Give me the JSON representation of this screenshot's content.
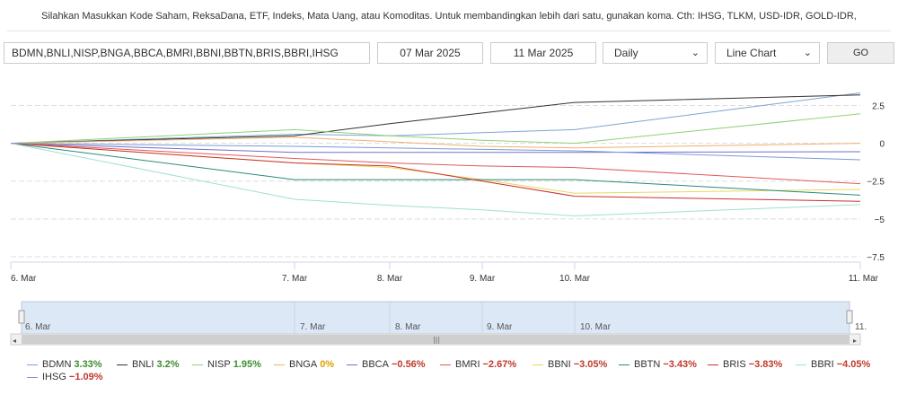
{
  "instructions": "Silahkan Masukkan Kode Saham, ReksaDana, ETF, Indeks, Mata Uang, atau Komoditas. Untuk membandingkan lebih dari satu, gunakan koma. Cth: IHSG, TLKM, USD-IDR, GOLD-IDR,",
  "controls": {
    "codes": "BDMN,BNLI,NISP,BNGA,BBCA,BMRI,BBNI,BBTN,BRIS,BBRI,IHSG",
    "start_date": "07 Mar 2025",
    "end_date": "11 Mar 2025",
    "interval": "Daily",
    "chart_type": "Line Chart",
    "go_label": "GO"
  },
  "chart_data": {
    "type": "line",
    "x": [
      "6. Mar",
      "7. Mar",
      "8. Mar",
      "9. Mar",
      "10. Mar",
      "11. Mar"
    ],
    "yticks": [
      2.5,
      0,
      -2.5,
      -5,
      -7.5
    ],
    "ytick_labels": [
      "2.5",
      "0",
      "−2.5",
      "−5",
      "−7.5"
    ],
    "ylim": [
      -7.5,
      3.3
    ],
    "navigator_labels": [
      "6. Mar",
      "7. Mar",
      "8. Mar",
      "9. Mar",
      "10. Mar",
      "11."
    ],
    "navigator_handle": "|||",
    "series": [
      {
        "name": "BDMN",
        "color": "#7ea6cf",
        "label": "3.33%",
        "sign": "pos",
        "values": [
          0,
          0.6,
          0.5,
          0.7,
          0.9,
          3.33
        ]
      },
      {
        "name": "BNLI",
        "color": "#333333",
        "label": "3.2%",
        "sign": "pos",
        "values": [
          0,
          0.5,
          1.3,
          2.0,
          2.7,
          3.2
        ]
      },
      {
        "name": "NISP",
        "color": "#8fd175",
        "label": "1.95%",
        "sign": "pos",
        "values": [
          0,
          0.9,
          0.5,
          0.2,
          0.0,
          1.95
        ]
      },
      {
        "name": "BNGA",
        "color": "#f0b070",
        "label": "0%",
        "sign": "zero",
        "values": [
          0,
          0.4,
          0.1,
          -0.2,
          -0.3,
          0.0
        ]
      },
      {
        "name": "BBCA",
        "color": "#7270c8",
        "label": "−0.56%",
        "sign": "neg",
        "values": [
          0,
          -0.6,
          -0.6,
          -0.6,
          -0.6,
          -0.56
        ]
      },
      {
        "name": "BMRI",
        "color": "#e05a5a",
        "label": "−2.67%",
        "sign": "neg",
        "values": [
          0,
          -1.0,
          -1.3,
          -1.5,
          -1.6,
          -2.67
        ]
      },
      {
        "name": "BBNI",
        "color": "#e6d95a",
        "label": "−3.05%",
        "sign": "neg",
        "values": [
          0,
          -1.3,
          -1.6,
          -2.4,
          -3.3,
          -3.05
        ]
      },
      {
        "name": "BBTN",
        "color": "#2a8a7a",
        "label": "−3.43%",
        "sign": "neg",
        "values": [
          0,
          -2.4,
          -2.4,
          -2.4,
          -2.4,
          -3.43
        ]
      },
      {
        "name": "BRIS",
        "color": "#cc3030",
        "label": "−3.83%",
        "sign": "neg",
        "values": [
          0,
          -1.3,
          -1.5,
          -2.5,
          -3.5,
          -3.83
        ]
      },
      {
        "name": "BBRI",
        "color": "#9ee0d0",
        "label": "−4.05%",
        "sign": "neg",
        "values": [
          0,
          -3.7,
          -4.1,
          -4.4,
          -4.8,
          -4.05
        ]
      },
      {
        "name": "IHSG",
        "color": "#7a9ad8",
        "label": "−1.09%",
        "sign": "neg",
        "values": [
          0,
          -0.2,
          -0.3,
          -0.4,
          -0.5,
          -1.09
        ]
      }
    ]
  }
}
